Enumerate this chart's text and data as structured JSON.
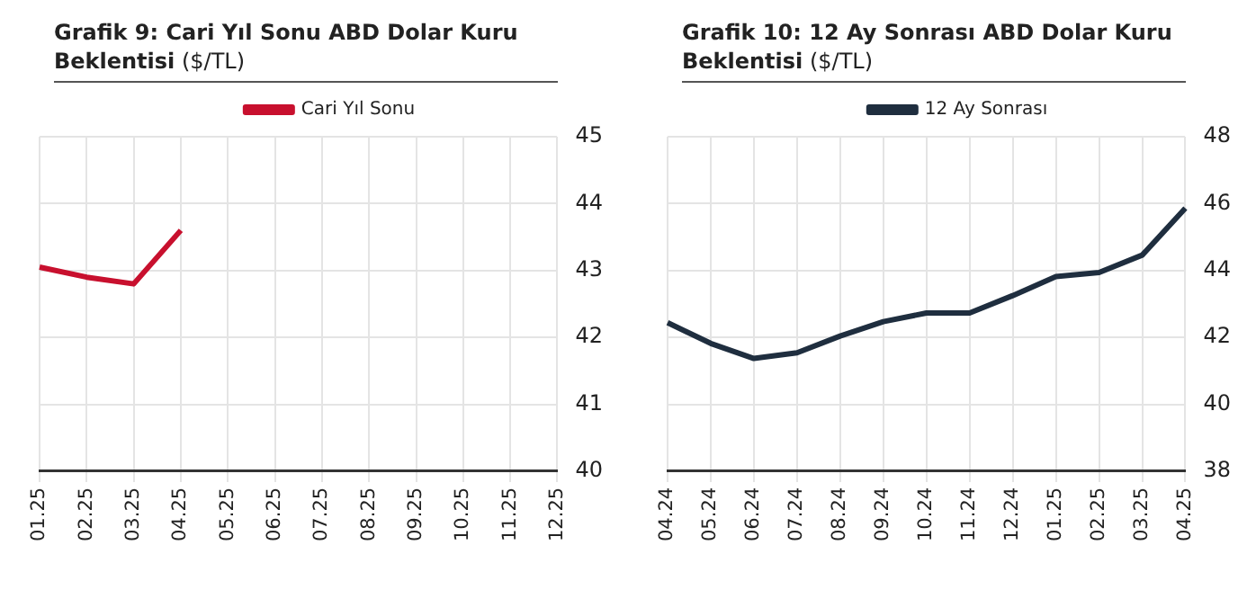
{
  "chart_data": [
    {
      "type": "line",
      "title": "Grafik 9: Cari Yıl Sonu ABD Dolar Kuru Beklentisi",
      "subtitle": "($/TL)",
      "categories": [
        "01.25",
        "02.25",
        "03.25",
        "04.25",
        "05.25",
        "06.25",
        "07.25",
        "08.25",
        "09.25",
        "10.25",
        "11.25",
        "12.25"
      ],
      "series": [
        {
          "name": "Cari Yıl Sonu",
          "color": "#c8102e",
          "values": [
            43.05,
            42.9,
            42.8,
            43.6,
            null,
            null,
            null,
            null,
            null,
            null,
            null,
            null
          ]
        }
      ],
      "ylim": [
        40,
        45
      ],
      "yticks": [
        40,
        41,
        42,
        43,
        44,
        45
      ],
      "grid": true,
      "legend": "top",
      "marker": "none",
      "line_style": "solid"
    },
    {
      "type": "line",
      "title": "Grafik 10: 12 Ay Sonrası ABD Dolar Kuru Beklentisi",
      "subtitle": "($/TL)",
      "categories": [
        "04.24",
        "05.24",
        "06.24",
        "07.24",
        "08.24",
        "09.24",
        "10.24",
        "11.24",
        "12.24",
        "01.25",
        "02.25",
        "03.25",
        "04.25"
      ],
      "series": [
        {
          "name": "12 Ay Sonrası",
          "color": "#1f2e3f",
          "values": [
            42.44,
            41.82,
            41.37,
            41.54,
            42.04,
            42.47,
            42.73,
            42.73,
            43.25,
            43.82,
            43.94,
            44.46,
            45.86
          ]
        }
      ],
      "ylim": [
        38,
        48
      ],
      "yticks": [
        38,
        40,
        42,
        44,
        46,
        48
      ],
      "grid": true,
      "legend": "top",
      "marker": "none",
      "line_style": "solid"
    }
  ]
}
